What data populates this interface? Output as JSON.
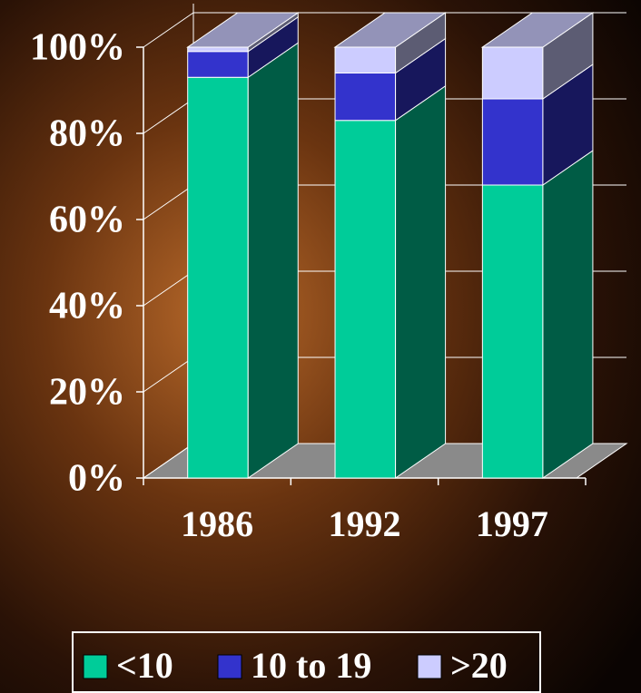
{
  "chart_data": {
    "type": "bar",
    "stacked": true,
    "three_d": true,
    "categories": [
      "1986",
      "1992",
      "1997"
    ],
    "series": [
      {
        "name": "<10",
        "color": "#00cc99",
        "values": [
          93,
          83,
          68
        ]
      },
      {
        "name": "10 to 19",
        "color": "#3333cc",
        "values": [
          6,
          11,
          20
        ]
      },
      {
        "name": ">20",
        "color": "#ccccff",
        "values": [
          1,
          6,
          12
        ]
      }
    ],
    "ylim": [
      0,
      100
    ],
    "yticks": [
      {
        "value": 0,
        "label": "0%"
      },
      {
        "value": 20,
        "label": "20%"
      },
      {
        "value": 40,
        "label": "40%"
      },
      {
        "value": 60,
        "label": "60%"
      },
      {
        "value": 80,
        "label": "80%"
      },
      {
        "value": 100,
        "label": "100%"
      }
    ],
    "grid": true,
    "legend": "bottom"
  }
}
